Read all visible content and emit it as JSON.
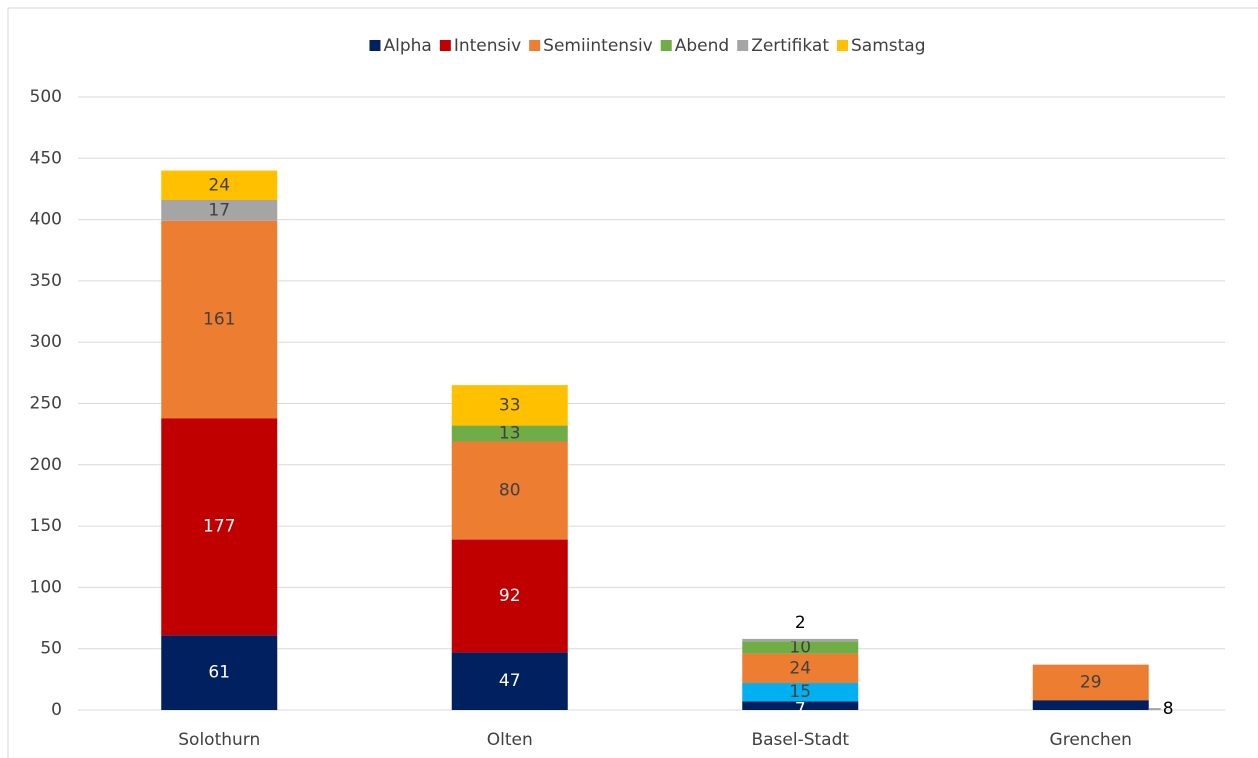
{
  "chart_data": {
    "type": "stacked_bar",
    "categories": [
      "Solothurn",
      "Olten",
      "Basel-Stadt",
      "Grenchen"
    ],
    "series": [
      {
        "name": "Alpha",
        "color": "#002060",
        "values": [
          61,
          47,
          7,
          8
        ]
      },
      {
        "name": "Intensiv",
        "color": "#c00000",
        "values": [
          177,
          92,
          15,
          null
        ],
        "point_colors": [
          "#c00000",
          "#c00000",
          "#00b0f0",
          null
        ]
      },
      {
        "name": "Semiintensiv",
        "color": "#ed7d31",
        "values": [
          161,
          80,
          24,
          29
        ]
      },
      {
        "name": "Abend",
        "color": "#70ad47",
        "values": [
          null,
          13,
          10,
          null
        ]
      },
      {
        "name": "Zertifikat",
        "color": "#a5a5a5",
        "values": [
          17,
          null,
          2,
          null
        ]
      },
      {
        "name": "Samstag",
        "color": "#ffc000",
        "values": [
          24,
          33,
          null,
          null
        ]
      }
    ],
    "ylim": [
      0,
      500
    ],
    "yticks": [
      0,
      50,
      100,
      150,
      200,
      250,
      300,
      350,
      400,
      450,
      500
    ],
    "grid": true,
    "legend": "top"
  }
}
